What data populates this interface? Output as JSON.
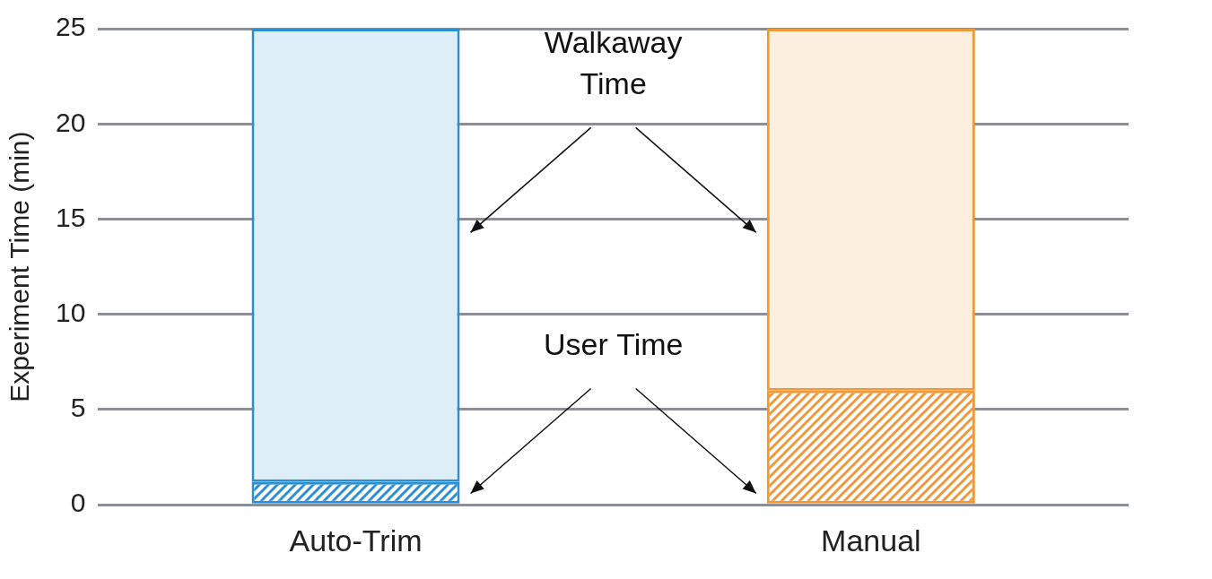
{
  "chart_data": {
    "type": "bar",
    "stacked": true,
    "grid": true,
    "y_label": "Experiment Time (min)",
    "categories": [
      "Auto-Trim",
      "Manual"
    ],
    "series": [
      {
        "name": "User Time",
        "marker": "hatch",
        "colors": [
          "#2a8fd4",
          "#f0993a"
        ],
        "values": [
          1.2,
          6
        ]
      },
      {
        "name": "Walkaway Time",
        "colors": [
          "#ddeef9",
          "#fdefe0"
        ],
        "values": [
          23.8,
          19
        ]
      }
    ],
    "ylim": [
      0,
      25
    ],
    "yticks": [
      0,
      5,
      10,
      15,
      20,
      25
    ]
  }
}
